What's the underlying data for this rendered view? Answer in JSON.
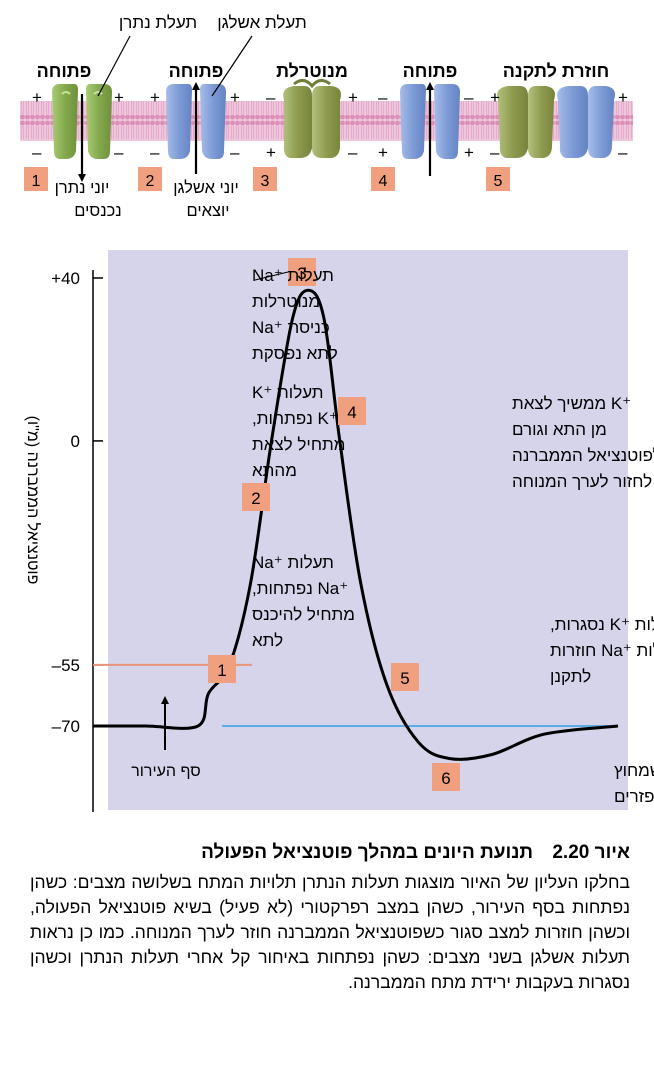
{
  "top": {
    "annotations": {
      "na_channel": "תעלת נתרן",
      "k_channel": "תעלת אשלגן"
    },
    "states": [
      {
        "number": "1",
        "label": "פתוחה"
      },
      {
        "number": "2",
        "label": "פתוחה"
      },
      {
        "number": "3",
        "label": "מנוטרלת"
      },
      {
        "number": "4",
        "label": "פתוחה"
      },
      {
        "number": "5",
        "label": "חוזרת לתקנה"
      }
    ],
    "ion_labels": {
      "na_in_line1": "יוני נתרן",
      "na_in_line2": "נכנסים",
      "k_out_line1": "יוני אשלגן",
      "k_out_line2": "יוצאים"
    },
    "charges": {
      "plus": "+",
      "minus": "–"
    }
  },
  "graph": {
    "ylabel": "פוטנציאל הממברנה (מ\"ו)",
    "yticks": [
      {
        "value": 40,
        "label": "+40"
      },
      {
        "value": 0,
        "label": "0"
      },
      {
        "value": -55,
        "label": "–55"
      },
      {
        "value": -70,
        "label": "–70"
      }
    ],
    "threshold_label": "סף העירור",
    "phases": [
      {
        "number": "1",
        "lines": [
          "תעלות ‎Na⁺‎",
          "‎Na⁺‎ נפתחות,",
          "מתחיל להיכנס",
          "לתא"
        ]
      },
      {
        "number": "2",
        "lines": [
          "תעלות ‎K⁺‎",
          "‎K⁺‎ נפתחות,",
          "מתחיל לצאת",
          "מהתא"
        ]
      },
      {
        "number": "3",
        "lines": [
          "תעלות ‎Na⁺‎",
          "מנוטרלות",
          "כניסת ‎Na⁺‎",
          "לתא נפסקת"
        ]
      },
      {
        "number": "4",
        "lines": [
          "‎K⁺‎ ממשיך לצאת",
          "מן התא וגורם",
          "לפוטנציאל הממברנה",
          "לחזור לערך המנוחה"
        ]
      },
      {
        "number": "5",
        "lines": [
          "תעלות ‎K⁺‎ נסגרות,",
          "תעלות ‎Na⁺‎ חוזרות",
          "לתקנן"
        ]
      },
      {
        "number": "6",
        "lines": [
          "עודפי ‎K⁺‎ שמחוץ",
          "לתא מתפזרים"
        ]
      }
    ]
  },
  "chart_data": {
    "type": "line",
    "ylabel": "פוטנציאל הממברנה (מ\"ו)",
    "xlabel": "",
    "yticks": [
      40,
      0,
      -55,
      -70
    ],
    "ylim": [
      -90,
      45
    ],
    "x": [
      0,
      1,
      2,
      2.2,
      2.6,
      3,
      3.4,
      3.8,
      4.1,
      4.4,
      4.7,
      5.1,
      5.6,
      6.2,
      6.8,
      7.6,
      8.6,
      10
    ],
    "series": [
      {
        "values": [
          -70,
          -70,
          -70,
          -62,
          -55,
          -35,
          0,
          30,
          37,
          30,
          0,
          -35,
          -60,
          -74,
          -78,
          -77,
          -72,
          -70
        ]
      }
    ],
    "reference_lines": [
      {
        "value": -55,
        "label": "סף העירור",
        "color": "#e8957a"
      },
      {
        "value": -70,
        "label": "",
        "color": "#5aaee5"
      }
    ],
    "colors": {
      "plot_background": "#d5d4ea",
      "curve": "#000000"
    }
  },
  "caption": {
    "figure_number": "איור 2.20",
    "title": "תנועת היונים במהלך פוטנציאל הפעולה",
    "text": "בחלקו העליון של האיור מוצגות תעלות הנתרן תלויות המתח בשלושה מצבים: כשהן נפתחות בסף העירור, כשהן במצב רפרקטורי (לא פעיל) בשיא פוטנציאל הפעולה, וכשהן חוזרות למצב סגור כשפוטנציאל הממברנה חוזר לערך המנוחה. כמו כן נראות תעלות אשלגן בשני מצבים: כשהן נפתחות באיחור קל אחרי תעלות הנתרן וכשהן נסגרות בעקבות ירידת מתח הממברנה."
  },
  "colors": {
    "number_box": "#f0a07e",
    "na_channel": "#8fb35a",
    "k_channel": "#7f9fda",
    "membrane": "#e2aac8"
  }
}
